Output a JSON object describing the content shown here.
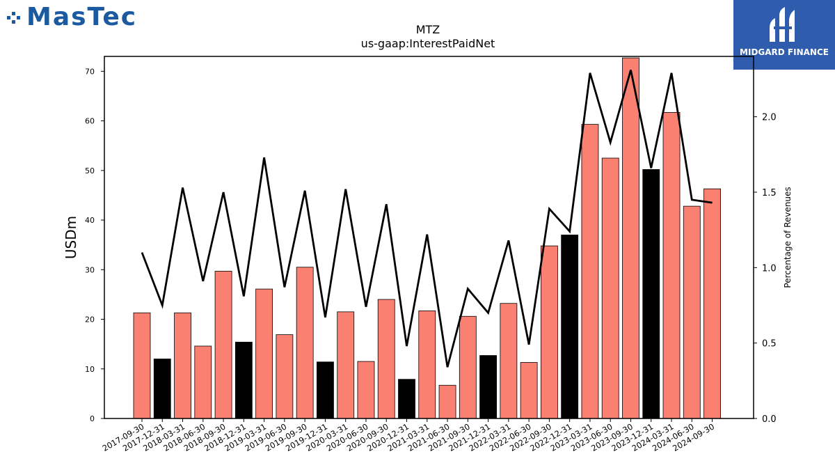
{
  "logos": {
    "left_text": "MasTec",
    "right_text": "MIDGARD FINANCE"
  },
  "chart_data": {
    "type": "bar",
    "title": "MTZ",
    "subtitle": "us-gaap:InterestPaidNet",
    "ylabel": "USDm",
    "y2label": "Percentage of Revenues",
    "ylim": [
      0,
      73
    ],
    "y2lim": [
      0,
      2.4
    ],
    "yticks": [
      0,
      10,
      20,
      30,
      40,
      50,
      60,
      70
    ],
    "y2ticks": [
      "0.0",
      "0.5",
      "1.0",
      "1.5",
      "2.0"
    ],
    "colors": {
      "quarter_bar": "#fa8072",
      "year_end_bar": "#000000",
      "line": "#000000"
    },
    "categories": [
      "2017-09-30",
      "2017-12-31",
      "2018-03-31",
      "2018-06-30",
      "2018-09-30",
      "2018-12-31",
      "2019-03-31",
      "2019-06-30",
      "2019-09-30",
      "2019-12-31",
      "2020-03-31",
      "2020-06-30",
      "2020-09-30",
      "2020-12-31",
      "2021-03-31",
      "2021-06-30",
      "2021-09-30",
      "2021-12-31",
      "2022-03-31",
      "2022-06-30",
      "2022-09-30",
      "2022-12-31",
      "2023-03-31",
      "2023-06-30",
      "2023-09-30",
      "2023-12-31",
      "2024-03-31",
      "2024-06-30",
      "2024-09-30"
    ],
    "series": [
      {
        "type": "bar",
        "values": [
          21.3,
          12.0,
          21.3,
          14.6,
          29.7,
          15.4,
          26.1,
          16.9,
          30.5,
          11.4,
          21.5,
          11.5,
          24.0,
          7.9,
          21.7,
          6.7,
          20.6,
          12.7,
          23.2,
          11.3,
          34.8,
          37.0,
          59.3,
          52.5,
          72.7,
          50.2,
          61.7,
          42.8,
          46.3
        ],
        "year_end": [
          false,
          true,
          false,
          false,
          false,
          true,
          false,
          false,
          false,
          true,
          false,
          false,
          false,
          true,
          false,
          false,
          false,
          true,
          false,
          false,
          false,
          true,
          false,
          false,
          false,
          true,
          false,
          false,
          false
        ]
      },
      {
        "type": "line",
        "axis": "right",
        "values": [
          1.1,
          0.75,
          1.53,
          0.91,
          1.5,
          0.81,
          1.73,
          0.87,
          1.51,
          0.67,
          1.52,
          0.74,
          1.42,
          0.48,
          1.22,
          0.34,
          0.86,
          0.7,
          1.18,
          0.49,
          1.39,
          1.24,
          2.29,
          1.83,
          2.31,
          1.66,
          2.29,
          1.45,
          1.43
        ]
      }
    ]
  }
}
